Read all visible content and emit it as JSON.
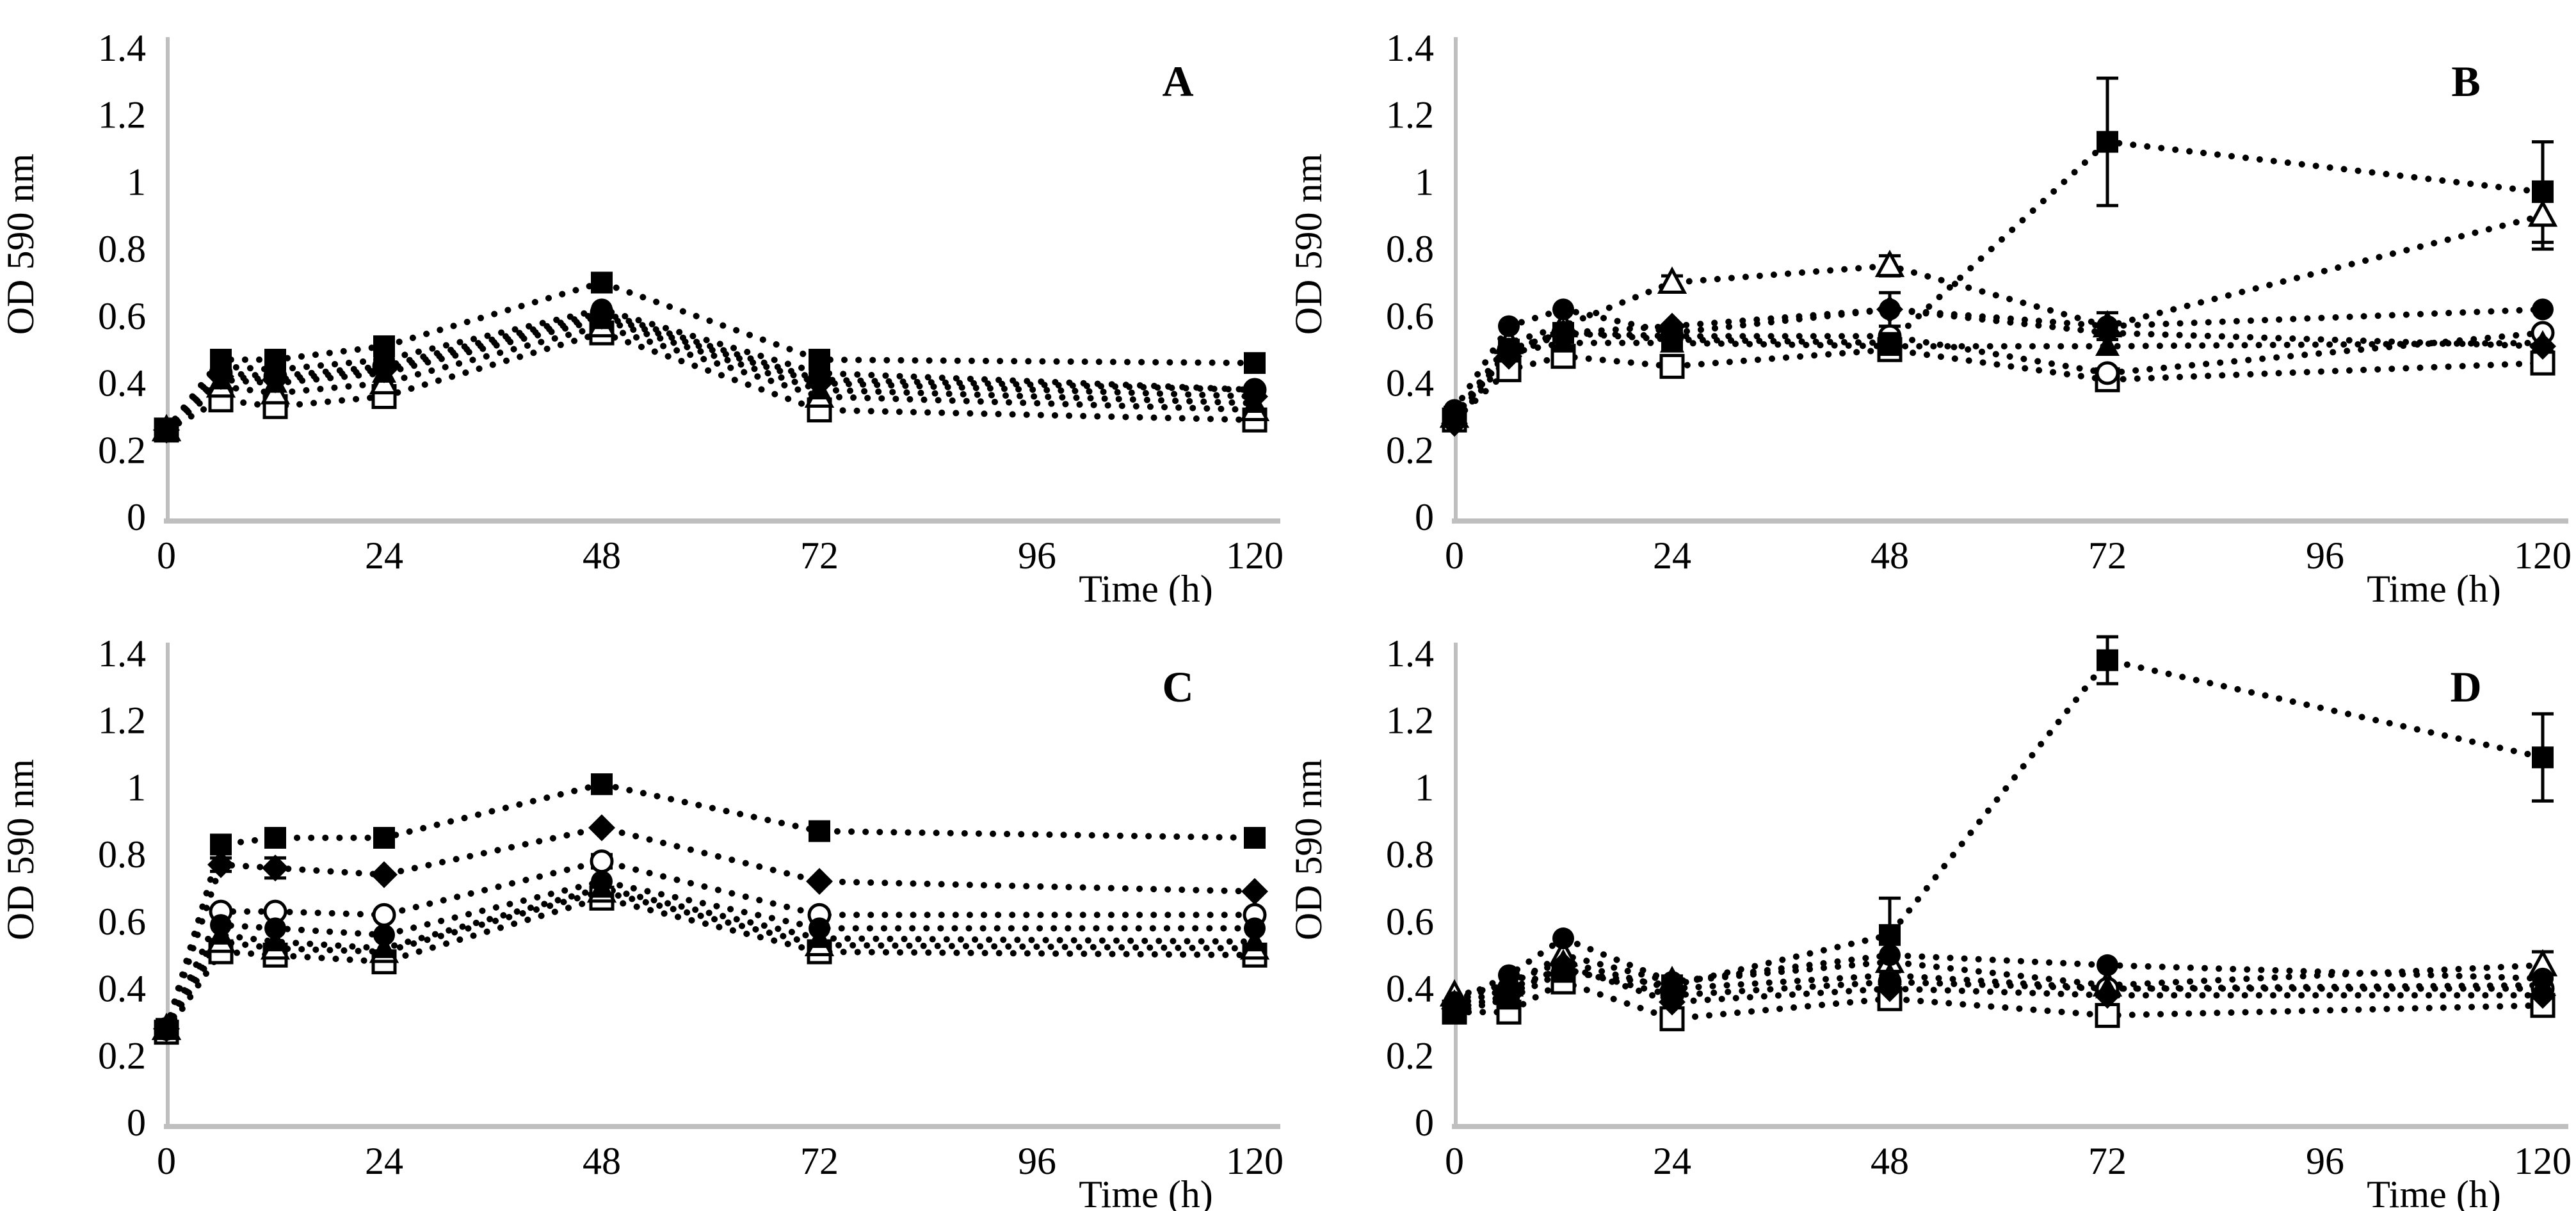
{
  "figure": {
    "background": "#ffffff",
    "ink_color": "#000000",
    "axis_color": "#bfbfbf",
    "panel_letters": [
      "A",
      "B",
      "C",
      "D"
    ]
  },
  "chart_data": [
    {
      "type": "line",
      "panel_letter": "A",
      "xlabel": "Time (h)",
      "ylabel": "OD 590 nm",
      "x": [
        0,
        6,
        12,
        24,
        48,
        72,
        120
      ],
      "xlim": [
        0,
        120
      ],
      "ylim": [
        0,
        1.4
      ],
      "xticks": [
        0,
        24,
        48,
        72,
        96,
        120
      ],
      "xtick_labels": [
        "0",
        "24",
        "48",
        "72",
        "96",
        "120"
      ],
      "yticks": [
        0,
        0.2,
        0.4,
        0.6,
        0.8,
        1,
        1.2,
        1.4
      ],
      "ytick_labels": [
        "0",
        "0.2",
        "0.4",
        "0.6",
        "0.8",
        "1",
        "1.2",
        "1.4"
      ],
      "grid": false,
      "legend": "none",
      "line_style": "dotted",
      "series": [
        {
          "name": "open-square",
          "marker": "open-square",
          "values": [
            0.26,
            0.35,
            0.33,
            0.36,
            0.55,
            0.32,
            0.29
          ],
          "errors": [
            null,
            0.02,
            0.02,
            null,
            null,
            0.02,
            null
          ]
        },
        {
          "name": "open-triangle",
          "marker": "open-triangle",
          "values": [
            0.26,
            0.39,
            0.37,
            0.4,
            0.57,
            0.36,
            0.32
          ],
          "errors": null
        },
        {
          "name": "open-circle",
          "marker": "open-circle",
          "values": [
            0.26,
            0.43,
            0.42,
            0.45,
            0.61,
            0.41,
            0.38
          ],
          "errors": null
        },
        {
          "name": "filled-triangle",
          "marker": "filled-triangle",
          "values": [
            0.26,
            0.41,
            0.4,
            0.43,
            0.59,
            0.38,
            0.34
          ],
          "errors": null
        },
        {
          "name": "filled-diamond",
          "marker": "filled-diamond",
          "values": [
            0.26,
            0.42,
            0.41,
            0.44,
            0.6,
            0.4,
            0.36
          ],
          "errors": null
        },
        {
          "name": "filled-circle",
          "marker": "filled-circle",
          "values": [
            0.26,
            0.45,
            0.44,
            0.47,
            0.62,
            0.43,
            0.38
          ],
          "errors": null
        },
        {
          "name": "filled-square",
          "marker": "filled-square",
          "values": [
            0.26,
            0.47,
            0.47,
            0.51,
            0.7,
            0.47,
            0.46
          ],
          "errors": null
        }
      ]
    },
    {
      "type": "line",
      "panel_letter": "B",
      "xlabel": "Time (h)",
      "ylabel": "OD 590 nm",
      "x": [
        0,
        6,
        12,
        24,
        48,
        72,
        120
      ],
      "xlim": [
        0,
        120
      ],
      "ylim": [
        0,
        1.4
      ],
      "xticks": [
        0,
        24,
        48,
        72,
        96,
        120
      ],
      "xtick_labels": [
        "0",
        "24",
        "48",
        "72",
        "96",
        "120"
      ],
      "yticks": [
        0,
        0.2,
        0.4,
        0.6,
        0.8,
        1,
        1.2,
        1.4
      ],
      "ytick_labels": [
        "0",
        "0.2",
        "0.4",
        "0.6",
        "0.8",
        "1",
        "1.2",
        "1.4"
      ],
      "grid": false,
      "legend": "none",
      "line_style": "dotted",
      "series": [
        {
          "name": "open-square",
          "marker": "open-square",
          "values": [
            0.29,
            0.44,
            0.48,
            0.45,
            0.5,
            0.41,
            0.46
          ],
          "errors": [
            null,
            null,
            null,
            0.02,
            null,
            0.03,
            null
          ]
        },
        {
          "name": "open-triangle",
          "marker": "open-triangle",
          "values": [
            0.3,
            0.52,
            0.57,
            0.7,
            0.75,
            0.57,
            0.9
          ],
          "errors": [
            null,
            null,
            null,
            0.02,
            0.03,
            0.04,
            0.1
          ]
        },
        {
          "name": "open-circle",
          "marker": "open-circle",
          "values": [
            0.29,
            0.5,
            0.55,
            0.54,
            0.54,
            0.43,
            0.55
          ],
          "errors": null
        },
        {
          "name": "filled-triangle",
          "marker": "filled-triangle",
          "values": [
            0.3,
            0.49,
            0.52,
            0.52,
            0.51,
            0.51,
            0.52
          ],
          "errors": null
        },
        {
          "name": "filled-diamond",
          "marker": "filled-diamond",
          "values": [
            0.28,
            0.48,
            0.55,
            0.57,
            0.62,
            0.55,
            0.51
          ],
          "errors": [
            null,
            null,
            null,
            null,
            0.05,
            null,
            null
          ]
        },
        {
          "name": "filled-circle",
          "marker": "filled-circle",
          "values": [
            0.32,
            0.57,
            0.62,
            0.55,
            0.62,
            0.57,
            0.62
          ],
          "errors": null
        },
        {
          "name": "filled-square",
          "marker": "filled-square",
          "values": [
            0.3,
            0.5,
            0.55,
            0.53,
            0.52,
            1.12,
            0.97
          ],
          "errors": [
            null,
            null,
            null,
            null,
            null,
            0.19,
            0.15
          ]
        }
      ]
    },
    {
      "type": "line",
      "panel_letter": "C",
      "xlabel": "Time (h)",
      "ylabel": "OD 590 nm",
      "x": [
        0,
        6,
        12,
        24,
        48,
        72,
        120
      ],
      "xlim": [
        0,
        120
      ],
      "ylim": [
        0,
        1.4
      ],
      "xticks": [
        0,
        24,
        48,
        72,
        96,
        120
      ],
      "xtick_labels": [
        "0",
        "24",
        "48",
        "72",
        "96",
        "120"
      ],
      "yticks": [
        0,
        0.2,
        0.4,
        0.6,
        0.8,
        1,
        1.2,
        1.4
      ],
      "ytick_labels": [
        "0",
        "0.2",
        "0.4",
        "0.6",
        "0.8",
        "1",
        "1.2",
        "1.4"
      ],
      "grid": false,
      "legend": "none",
      "line_style": "dotted",
      "series": [
        {
          "name": "open-square",
          "marker": "open-square",
          "values": [
            0.27,
            0.51,
            0.5,
            0.48,
            0.67,
            0.51,
            0.5
          ],
          "errors": [
            null,
            0.02,
            null,
            null,
            null,
            null,
            null
          ]
        },
        {
          "name": "open-triangle",
          "marker": "open-triangle",
          "values": [
            0.28,
            0.54,
            0.52,
            0.51,
            0.69,
            0.53,
            0.52
          ],
          "errors": null
        },
        {
          "name": "open-circle",
          "marker": "open-circle",
          "values": [
            0.28,
            0.63,
            0.63,
            0.62,
            0.78,
            0.62,
            0.62
          ],
          "errors": [
            null,
            null,
            null,
            null,
            0.02,
            null,
            null
          ]
        },
        {
          "name": "filled-triangle",
          "marker": "filled-triangle",
          "values": [
            0.28,
            0.56,
            0.54,
            0.52,
            0.7,
            0.55,
            0.54
          ],
          "errors": null
        },
        {
          "name": "filled-diamond",
          "marker": "filled-diamond",
          "values": [
            0.28,
            0.77,
            0.76,
            0.74,
            0.88,
            0.72,
            0.69
          ],
          "errors": [
            null,
            0.02,
            0.03,
            null,
            null,
            null,
            null
          ]
        },
        {
          "name": "filled-circle",
          "marker": "filled-circle",
          "values": [
            0.28,
            0.59,
            0.58,
            0.56,
            0.72,
            0.58,
            0.58
          ],
          "errors": null
        },
        {
          "name": "filled-square",
          "marker": "filled-square",
          "values": [
            0.28,
            0.83,
            0.85,
            0.85,
            1.01,
            0.87,
            0.85
          ],
          "errors": null
        }
      ]
    },
    {
      "type": "line",
      "panel_letter": "D",
      "xlabel": "Time (h)",
      "ylabel": "OD 590 nm",
      "x": [
        0,
        6,
        12,
        24,
        48,
        72,
        120
      ],
      "xlim": [
        0,
        120
      ],
      "ylim": [
        0,
        1.4
      ],
      "xticks": [
        0,
        24,
        48,
        72,
        96,
        120
      ],
      "xtick_labels": [
        "0",
        "24",
        "48",
        "72",
        "96",
        "120"
      ],
      "yticks": [
        0,
        0.2,
        0.4,
        0.6,
        0.8,
        1,
        1.2,
        1.4
      ],
      "ytick_labels": [
        "0",
        "0.2",
        "0.4",
        "0.6",
        "0.8",
        "1",
        "1.2",
        "1.4"
      ],
      "grid": false,
      "legend": "none",
      "line_style": "dotted",
      "series": [
        {
          "name": "open-square",
          "marker": "open-square",
          "values": [
            0.33,
            0.33,
            0.42,
            0.31,
            0.37,
            0.32,
            0.35
          ],
          "errors": [
            null,
            0.02,
            0.02,
            0.02,
            null,
            0.02,
            null
          ]
        },
        {
          "name": "open-triangle",
          "marker": "open-triangle",
          "values": [
            0.38,
            0.41,
            0.5,
            0.42,
            0.48,
            0.41,
            0.47
          ],
          "errors": [
            null,
            null,
            null,
            null,
            null,
            null,
            0.04
          ]
        },
        {
          "name": "open-circle",
          "marker": "open-circle",
          "values": [
            0.35,
            0.4,
            0.46,
            0.38,
            0.42,
            0.4,
            0.4
          ],
          "errors": null
        },
        {
          "name": "filled-triangle",
          "marker": "filled-triangle",
          "values": [
            0.36,
            0.42,
            0.48,
            0.4,
            0.44,
            0.4,
            0.41
          ],
          "errors": null
        },
        {
          "name": "filled-diamond",
          "marker": "filled-diamond",
          "values": [
            0.34,
            0.38,
            0.47,
            0.36,
            0.4,
            0.38,
            0.38
          ],
          "errors": null
        },
        {
          "name": "filled-circle",
          "marker": "filled-circle",
          "values": [
            0.36,
            0.44,
            0.55,
            0.42,
            0.5,
            0.47,
            0.43
          ],
          "errors": null
        },
        {
          "name": "filled-square",
          "marker": "filled-square",
          "values": [
            0.33,
            0.37,
            0.45,
            0.41,
            0.56,
            1.38,
            1.09
          ],
          "errors": [
            null,
            null,
            null,
            null,
            0.11,
            0.07,
            0.13
          ]
        }
      ]
    }
  ]
}
